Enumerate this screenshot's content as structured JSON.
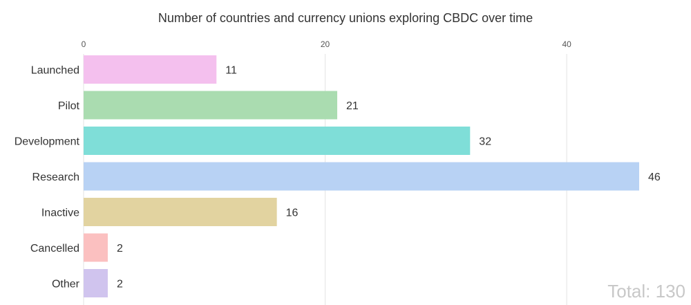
{
  "chart_data": {
    "type": "bar",
    "orientation": "horizontal",
    "title": "Number of countries and currency unions exploring CBDC over time",
    "categories": [
      "Launched",
      "Pilot",
      "Development",
      "Research",
      "Inactive",
      "Cancelled",
      "Other"
    ],
    "values": [
      11,
      21,
      32,
      46,
      16,
      2,
      2
    ],
    "colors": [
      "#f4c0ee",
      "#aadcb0",
      "#7fded8",
      "#b8d2f4",
      "#e2d3a0",
      "#fbc0c0",
      "#d0c4ee"
    ],
    "xlim": [
      0,
      46
    ],
    "xticks": [
      0,
      20,
      40
    ],
    "grid": true,
    "xaxis_position": "top",
    "total_label": "Total: 130"
  }
}
